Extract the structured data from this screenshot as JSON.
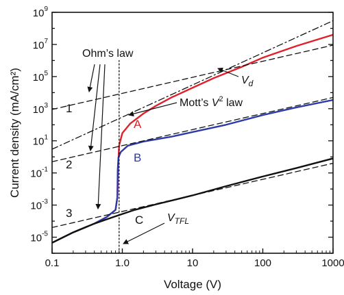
{
  "chart_data": {
    "type": "line",
    "title": "",
    "xlabel": "Voltage (V)",
    "ylabel": "Current density (mA/cm²)",
    "x_scale": "log",
    "y_scale": "log",
    "xlim": [
      0.1,
      1000
    ],
    "ylim": [
      1e-06,
      1000000000
    ],
    "grid": false,
    "x_ticks": [
      {
        "value": 0.1,
        "label": "0.1"
      },
      {
        "value": 1,
        "label": "1.0"
      },
      {
        "value": 10,
        "label": "10"
      },
      {
        "value": 100,
        "label": "100"
      },
      {
        "value": 1000,
        "label": "1000"
      }
    ],
    "y_ticks": [
      {
        "value": 1e-05,
        "base": "10",
        "exp": "-5"
      },
      {
        "value": 0.001,
        "base": "10",
        "exp": "-3"
      },
      {
        "value": 0.1,
        "base": "10",
        "exp": "-1"
      },
      {
        "value": 10,
        "base": "10",
        "exp": "1"
      },
      {
        "value": 1000,
        "base": "10",
        "exp": "3"
      },
      {
        "value": 100000,
        "base": "10",
        "exp": "5"
      },
      {
        "value": 10000000,
        "base": "10",
        "exp": "7"
      },
      {
        "value": 1000000000,
        "base": "10",
        "exp": "9"
      }
    ],
    "series": [
      {
        "name": "A",
        "color": "#e0202a",
        "style": "solid",
        "points": [
          [
            0.1,
            4.5e-06
          ],
          [
            0.2,
            2e-05
          ],
          [
            0.4,
            7e-05
          ],
          [
            0.6,
            0.00018
          ],
          [
            0.8,
            0.0005
          ],
          [
            0.85,
            0.003
          ],
          [
            0.87,
            0.2
          ],
          [
            0.9,
            5
          ],
          [
            1.0,
            30
          ],
          [
            1.3,
            120
          ],
          [
            2,
            500
          ],
          [
            3,
            1500
          ],
          [
            5,
            5000
          ],
          [
            10,
            20000
          ],
          [
            20,
            80000
          ],
          [
            50,
            400000
          ],
          [
            100,
            1500000
          ],
          [
            300,
            8000000
          ],
          [
            1000,
            40000000
          ]
        ]
      },
      {
        "name": "B",
        "color": "#2b3aa6",
        "style": "solid",
        "points": [
          [
            0.1,
            4.5e-06
          ],
          [
            0.2,
            2e-05
          ],
          [
            0.4,
            7e-05
          ],
          [
            0.6,
            0.00018
          ],
          [
            0.8,
            0.0005
          ],
          [
            0.85,
            0.003
          ],
          [
            0.86,
            0.15
          ],
          [
            0.88,
            0.9
          ],
          [
            0.95,
            2
          ],
          [
            1.2,
            5
          ],
          [
            2,
            9
          ],
          [
            5,
            18
          ],
          [
            10,
            35
          ],
          [
            30,
            100
          ],
          [
            100,
            400
          ],
          [
            300,
            1200
          ],
          [
            1000,
            3500
          ]
        ]
      },
      {
        "name": "C",
        "color": "#111111",
        "style": "solid",
        "points": [
          [
            0.1,
            4.5e-06
          ],
          [
            0.2,
            2e-05
          ],
          [
            0.4,
            7e-05
          ],
          [
            0.8,
            0.0002
          ],
          [
            1.5,
            0.0005
          ],
          [
            3,
            0.0011
          ],
          [
            10,
            0.004
          ],
          [
            30,
            0.015
          ],
          [
            100,
            0.06
          ],
          [
            300,
            0.2
          ],
          [
            1000,
            0.8
          ]
        ]
      },
      {
        "name": "Ohm's law 1",
        "color": "#111111",
        "style": "dashed",
        "points": [
          [
            0.1,
            900
          ],
          [
            1000,
            9000000
          ]
        ]
      },
      {
        "name": "Ohm's law 2",
        "color": "#111111",
        "style": "dashed",
        "points": [
          [
            0.1,
            0.5
          ],
          [
            1000,
            5000
          ]
        ]
      },
      {
        "name": "Ohm's law 3",
        "color": "#111111",
        "style": "dashed",
        "points": [
          [
            0.1,
            4e-05
          ],
          [
            1000,
            0.4
          ]
        ]
      },
      {
        "name": "Mott's V² law",
        "color": "#111111",
        "style": "dashdot",
        "points": [
          [
            0.1,
            3
          ],
          [
            1000,
            300000000
          ]
        ]
      },
      {
        "name": "V_TFL marker",
        "color": "#111111",
        "style": "dotted",
        "points": [
          [
            0.9,
            1e-06
          ],
          [
            0.9,
            1000000
          ]
        ]
      }
    ],
    "annotations": {
      "ohms_law": "Ohm’s law",
      "motts_law_prefix": "Mott’s ",
      "motts_law_var": "V",
      "motts_law_sup": "2",
      "motts_law_suffix": " law",
      "vd_main": "V",
      "vd_sub": "d",
      "vtfl_main": "V",
      "vtfl_sub": "TFL",
      "curve_a": "A",
      "curve_b": "B",
      "curve_c": "C",
      "line_1": "1",
      "line_2": "2",
      "line_3": "3"
    }
  }
}
